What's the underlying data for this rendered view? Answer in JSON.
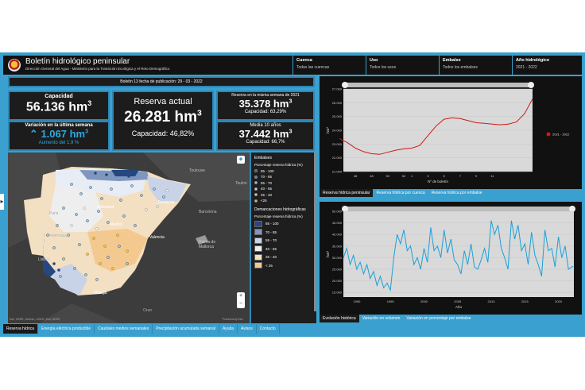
{
  "header": {
    "title": "Boletín hidrológico peninsular",
    "subtitle": "Dirección General del Agua - Ministerio para la Transición Ecológica y el Reto Demográfico",
    "filters": [
      {
        "label": "Cuenca",
        "value": "Todas las cuencas"
      },
      {
        "label": "Uso",
        "value": "Todos los usos"
      },
      {
        "label": "Embalse",
        "value": "Todos los embalses"
      },
      {
        "label": "Año hidrológico",
        "value": "2021 - 2022"
      }
    ]
  },
  "bulletin": "Boletín 13 fecha de publicación: 29 - 03 - 2022",
  "capacity": {
    "label": "Capacidad",
    "value": "56.136 hm",
    "sup": "3"
  },
  "variation": {
    "label": "Variación en la última semana",
    "arrow": "⌃",
    "value": "1.067 hm",
    "sup": "3",
    "note": "Aumento del 1,9 %"
  },
  "reserve": {
    "label": "Reserva actual",
    "value": "26.281 hm",
    "sup": "3",
    "capacity": "Capacidad: 46,82%"
  },
  "last_year": {
    "label": "Reserva en la misma semana de 2021",
    "value": "35.378 hm",
    "sup": "3",
    "capacity": "Capacidad: 63,29%"
  },
  "avg10": {
    "label": "Media 10 años",
    "value": "37.442 hm",
    "sup": "3",
    "capacity": "Capacidad: 66,7%"
  },
  "map": {
    "labels": [
      "Toulouse",
      "Toulon",
      "Valladolid",
      "Zaragoza",
      "Barcelona",
      "Madrid",
      "PORTUGAL",
      "Lisbon",
      "Palma de Mallorca",
      "Valencia",
      "Málaga",
      "Paris",
      "Oran"
    ],
    "attribution": "Esri, HERE, Garmin, USGS | Esri, HERE",
    "powered": "Powered by Esri"
  },
  "legend": {
    "embalses_title": "Embalses",
    "embalses_subtitle": "Porcentaje reserva hídrica (%)",
    "embalses_items": [
      {
        "label": "85 - 100",
        "color": "#1f4f8f"
      },
      {
        "label": "70 - 85",
        "color": "#3f7fbf"
      },
      {
        "label": "55 - 70",
        "color": "#9fc3e6"
      },
      {
        "label": "40 - 55",
        "color": "#e8e8e8"
      },
      {
        "label": "25 - 40",
        "color": "#f5dcae"
      },
      {
        "label": "<25",
        "color": "#f2c14e"
      }
    ],
    "dem_title": "Demarcaciones hidrográficas",
    "dem_subtitle": "Porcentaje reserva hídrica (%)",
    "dem_items": [
      {
        "label": "85 - 100",
        "color": "#26477f"
      },
      {
        "label": "70 - 85",
        "color": "#7f97bf"
      },
      {
        "label": "55 - 70",
        "color": "#c9d3e8"
      },
      {
        "label": "40 - 55",
        "color": "#eeeeee"
      },
      {
        "label": "25 - 40",
        "color": "#f4dfc0"
      },
      {
        "label": "< 25",
        "color": "#f3c98f"
      }
    ]
  },
  "chart_top_tabs": [
    "Reserva hídrica peninsular",
    "Reserva hídrica por cuenca",
    "Reserva hídrica por embalse"
  ],
  "chart_bottom_tabs": [
    "Evolución histórica",
    "Variación en volumen",
    "Variación en porcentaje por embalse"
  ],
  "bottom_tabs": [
    "Reserva hídrica",
    "Energía eléctrica producible",
    "Caudales medios semanales",
    "Precipitación acumulada semanal",
    "Ayuda",
    "Avisos",
    "Contacto"
  ],
  "chart_data": [
    {
      "type": "line",
      "xlabel": "Nº de boletín",
      "ylabel": "hm³",
      "x_ticks": [
        "46",
        "48",
        "50",
        "52",
        "1",
        "3",
        "5",
        "7",
        "9",
        "11"
      ],
      "y_ticks": [
        "21.000",
        "22.000",
        "23.000",
        "24.000",
        "25.000",
        "26.000",
        "27.000"
      ],
      "ylim": [
        21000,
        27000
      ],
      "series": [
        {
          "name": "2021 - 2022",
          "color": "#d01818",
          "x": [
            44,
            45,
            46,
            47,
            48,
            49,
            50,
            51,
            52,
            53,
            54,
            55,
            56,
            57,
            58,
            59,
            60,
            61,
            62,
            63,
            64,
            65,
            66,
            67,
            68
          ],
          "values": [
            23400,
            23100,
            22700,
            22450,
            22300,
            22250,
            22400,
            22550,
            22650,
            22700,
            22900,
            23600,
            24300,
            24800,
            24900,
            24850,
            24700,
            24550,
            24500,
            24450,
            24400,
            24450,
            24600,
            25200,
            26280
          ]
        }
      ],
      "legend": "right"
    },
    {
      "type": "line",
      "xlabel": "Año",
      "ylabel": "hm³",
      "x_ticks": [
        "1990",
        "1995",
        "2000",
        "2005",
        "2010",
        "2015",
        "2020"
      ],
      "y_ticks": [
        "15.000",
        "20.000",
        "25.000",
        "30.000",
        "35.000",
        "40.000",
        "45.000",
        "50.000"
      ],
      "ylim": [
        13000,
        50000
      ],
      "xlim": [
        1988,
        2022.3
      ],
      "series": [
        {
          "name": "",
          "color": "#1aa0d8",
          "x": [
            1988,
            1988.5,
            1989,
            1989.5,
            1990,
            1990.5,
            1991,
            1991.5,
            1992,
            1992.5,
            1993,
            1993.5,
            1994,
            1994.5,
            1995,
            1995.5,
            1996,
            1996.5,
            1997,
            1997.5,
            1998,
            1998.5,
            1999,
            1999.5,
            2000,
            2000.5,
            2001,
            2001.5,
            2002,
            2002.5,
            2003,
            2003.5,
            2004,
            2004.5,
            2005,
            2005.5,
            2006,
            2006.5,
            2007,
            2007.5,
            2008,
            2008.5,
            2009,
            2009.5,
            2010,
            2010.5,
            2011,
            2011.5,
            2012,
            2012.5,
            2013,
            2013.5,
            2014,
            2014.5,
            2015,
            2015.5,
            2016,
            2016.5,
            2017,
            2017.5,
            2018,
            2018.5,
            2019,
            2019.5,
            2020,
            2020.5,
            2021,
            2021.5,
            2022,
            2022.2
          ],
          "values": [
            30000,
            34000,
            27000,
            31000,
            25000,
            28000,
            23000,
            27000,
            21000,
            24000,
            18000,
            22000,
            17000,
            19000,
            16000,
            30000,
            40000,
            36000,
            42000,
            33000,
            35000,
            27000,
            30000,
            25000,
            34000,
            28000,
            43000,
            33000,
            35000,
            30000,
            42000,
            32000,
            38000,
            29000,
            27000,
            23000,
            33000,
            27000,
            36000,
            26000,
            25000,
            29000,
            34000,
            28000,
            46000,
            40000,
            44000,
            34000,
            30000,
            25000,
            46000,
            38000,
            44000,
            33000,
            36000,
            27000,
            41000,
            31000,
            27000,
            22000,
            42000,
            33000,
            34000,
            26000,
            39000,
            30000,
            35000,
            25000,
            26000,
            26300
          ]
        }
      ]
    }
  ]
}
